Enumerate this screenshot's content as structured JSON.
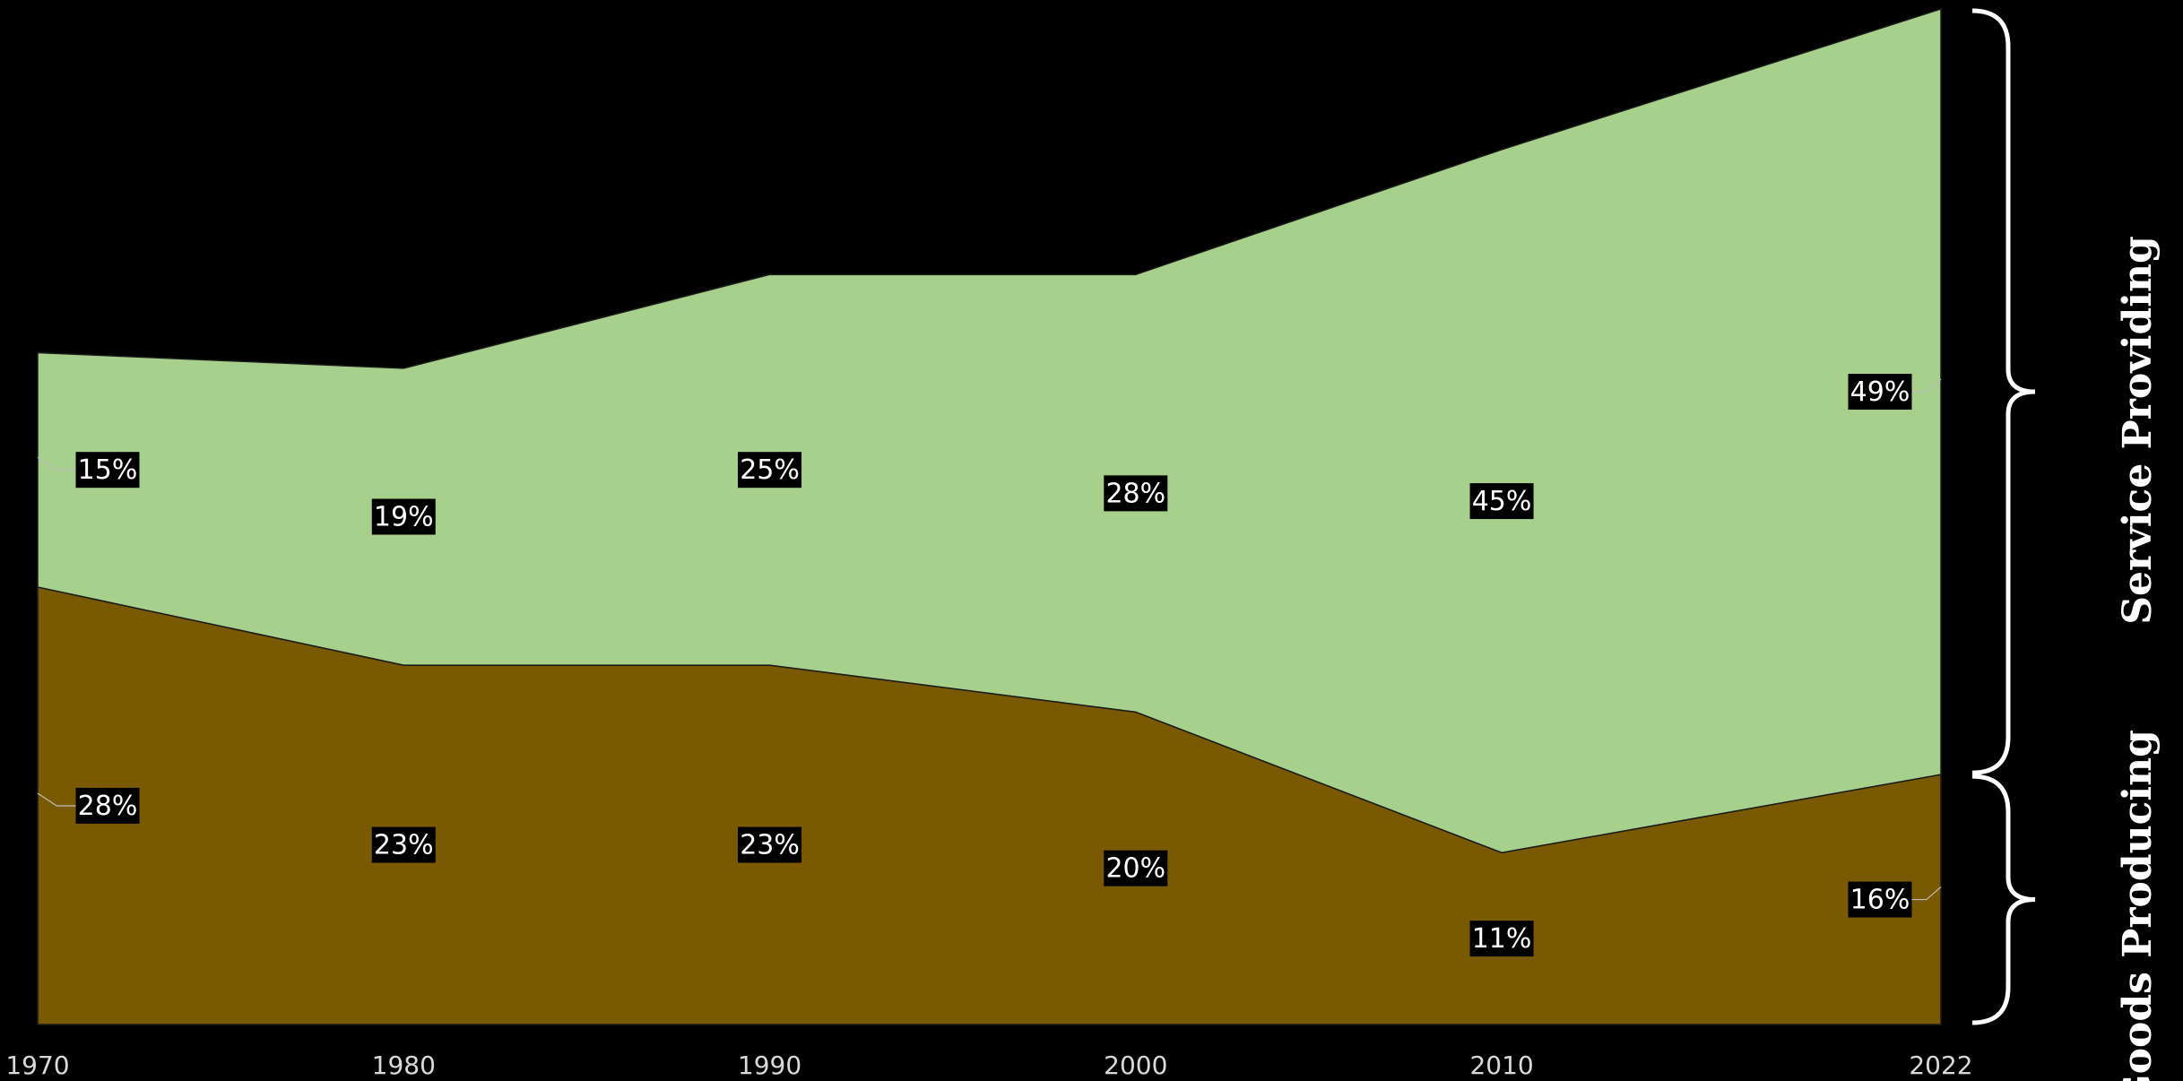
{
  "chart_data": {
    "type": "area",
    "stacked": true,
    "x": [
      1970,
      1980,
      1990,
      2000,
      2010,
      2022
    ],
    "x_tick_labels": [
      "1970",
      "1980",
      "1990",
      "2000",
      "2010",
      "2022"
    ],
    "series": [
      {
        "values": [
          28,
          23,
          23,
          20,
          11,
          16
        ],
        "labels": [
          "28%",
          "23%",
          "23%",
          "20%",
          "11%",
          "16%"
        ],
        "color": "#7a5a00"
      },
      {
        "values": [
          15,
          19,
          25,
          28,
          45,
          49
        ],
        "labels": [
          "15%",
          "19%",
          "25%",
          "28%",
          "45%",
          "49%"
        ],
        "color": "#a8d08d"
      }
    ],
    "ylim": [
      0,
      65
    ],
    "grid": false,
    "background": "#000000",
    "groups": [
      {
        "label": "Service Providing",
        "series_index": 1
      },
      {
        "label": "Goods Producing",
        "series_index": 0
      }
    ]
  }
}
